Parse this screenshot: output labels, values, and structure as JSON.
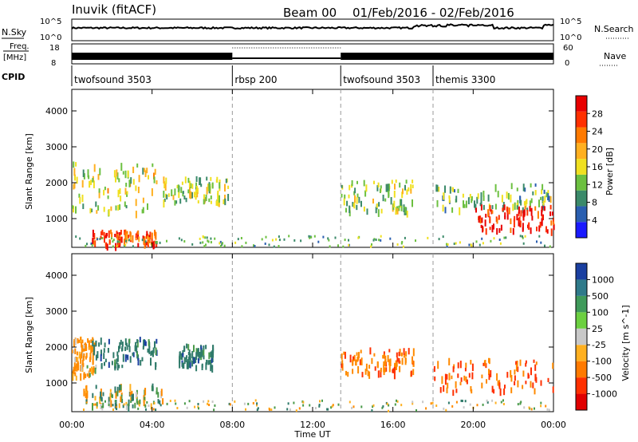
{
  "header": {
    "station": "Inuvik (fitACF)",
    "beam": "Beam 00",
    "date_range": "01/Feb/2016 - 02/Feb/2016"
  },
  "left_labels": {
    "nsky": "N.Sky",
    "freq": "Freq.",
    "freq_unit": "[MHz]",
    "cpid": "CPID"
  },
  "right_labels": {
    "nsearch": "N.Search",
    "nave": "Nave"
  },
  "scale_labels": {
    "noise_hi": "10^5",
    "noise_lo": "10^0",
    "freq_hi": "18",
    "freq_lo": "8",
    "nave_hi": "60",
    "nave_lo": "0"
  },
  "cpid_segments": [
    {
      "label": "twofsound 3503",
      "start_h": 0,
      "end_h": 8.0
    },
    {
      "label": "rbsp 200",
      "start_h": 8.0,
      "end_h": 13.4
    },
    {
      "label": "twofsound 3503",
      "start_h": 13.4,
      "end_h": 18.0
    },
    {
      "label": "themis 3300",
      "start_h": 18.0,
      "end_h": 24.0
    }
  ],
  "x_axis": {
    "title": "Time UT",
    "ticks": [
      "00:00",
      "04:00",
      "08:00",
      "12:00",
      "16:00",
      "20:00",
      "00:00"
    ]
  },
  "power_panel": {
    "ylabel": "Slant Range [km]",
    "yticks": [
      "1000",
      "2000",
      "3000",
      "4000"
    ],
    "colorbar_label": "Power [dB]",
    "colorbar_ticks": [
      "4",
      "8",
      "12",
      "16",
      "20",
      "24",
      "28"
    ],
    "colorbar_colors": [
      "#1a1aff",
      "#2a5fb0",
      "#3b8a6a",
      "#6cc040",
      "#f0e020",
      "#ffb020",
      "#ff7a00",
      "#ff3000",
      "#e80000"
    ]
  },
  "velocity_panel": {
    "ylabel": "Slant Range [km]",
    "yticks": [
      "1000",
      "2000",
      "3000",
      "4000"
    ],
    "colorbar_label": "Velocity [m s^-1]",
    "colorbar_ticks": [
      "1000",
      "500",
      "100",
      "25",
      "-25",
      "-100",
      "-500",
      "-1000"
    ],
    "colorbar_colors": [
      "#1a3fa0",
      "#2f7a8a",
      "#3f9a5a",
      "#6cd040",
      "#c8c8c8",
      "#ffb020",
      "#ff7a00",
      "#ff3000",
      "#e00000"
    ]
  },
  "chart_data": {
    "type": "heatmap",
    "title": "Inuvik (fitACF) Beam 00 01/Feb/2016 - 02/Feb/2016",
    "xlabel": "Time UT",
    "ylabel": "Slant Range [km]",
    "xlim_hours": [
      0,
      24
    ],
    "ylim_km": [
      200,
      4600
    ],
    "x_ticks": [
      "00:00",
      "04:00",
      "08:00",
      "12:00",
      "16:00",
      "20:00",
      "00:00"
    ],
    "y_ticks": [
      1000,
      2000,
      3000,
      4000
    ],
    "power_colorbar_range_dB": [
      0,
      32
    ],
    "velocity_colorbar_range": [
      -1000,
      1000
    ],
    "cpid_changes_hours": [
      8.0,
      13.4,
      18.0
    ],
    "power_regions": [
      {
        "t0": 0.0,
        "t1": 4.2,
        "r0": 1200,
        "r1": 2600,
        "level_dB": 16
      },
      {
        "t0": 4.5,
        "t1": 7.8,
        "r0": 1500,
        "r1": 2200,
        "level_dB": 14
      },
      {
        "t0": 1.0,
        "t1": 4.2,
        "r0": 300,
        "r1": 700,
        "level_dB": 26
      },
      {
        "t0": 13.4,
        "t1": 17.0,
        "r0": 1200,
        "r1": 2100,
        "level_dB": 13
      },
      {
        "t0": 18.0,
        "t1": 24.0,
        "r0": 1300,
        "r1": 2000,
        "level_dB": 12
      },
      {
        "t0": 20.0,
        "t1": 24.0,
        "r0": 700,
        "r1": 1400,
        "level_dB": 28
      }
    ],
    "velocity_regions": [
      {
        "t0": 0.0,
        "t1": 1.2,
        "r0": 1200,
        "r1": 2300,
        "velocity": -200
      },
      {
        "t0": 1.0,
        "t1": 4.2,
        "r0": 1500,
        "r1": 2300,
        "velocity": 300
      },
      {
        "t0": 5.3,
        "t1": 7.0,
        "r0": 1500,
        "r1": 2100,
        "velocity": 300
      },
      {
        "t0": 0.5,
        "t1": 4.5,
        "r0": 400,
        "r1": 1000,
        "velocity": 0
      },
      {
        "t0": 13.4,
        "t1": 17.0,
        "r0": 1300,
        "r1": 2000,
        "velocity": -400
      },
      {
        "t0": 18.0,
        "t1": 24.0,
        "r0": 800,
        "r1": 1700,
        "velocity": -500
      }
    ]
  }
}
